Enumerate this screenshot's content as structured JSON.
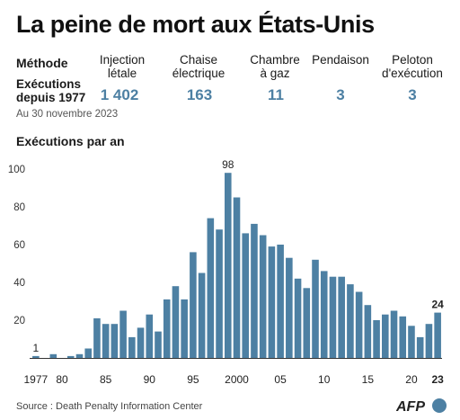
{
  "header": {
    "title": "La peine de mort aux États-Unis",
    "method_label": "Méthode",
    "executions_label": "Exécutions\ndepuis 1977",
    "as_of": "Au 30 novembre 2023"
  },
  "methods": [
    {
      "name": "Injection\nlétale",
      "value": "1 402"
    },
    {
      "name": "Chaise\nélectrique",
      "value": "163"
    },
    {
      "name": "Chambre\nà gaz",
      "value": "11"
    },
    {
      "name": "Pendaison",
      "value": "3"
    },
    {
      "name": "Peloton\nd'exécution",
      "value": "3"
    }
  ],
  "footer": {
    "source": "Source : Death Penalty Information Center",
    "logo_text": "AFP"
  },
  "colors": {
    "bar": "#4d80a3",
    "value_text": "#4d80a3",
    "axis": "#333333",
    "logo": "#4d80a3"
  },
  "chart_data": {
    "type": "bar",
    "title": "Exécutions par an",
    "xlabel": "",
    "ylabel": "",
    "x": [
      1977,
      1978,
      1979,
      1980,
      1981,
      1982,
      1983,
      1984,
      1985,
      1986,
      1987,
      1988,
      1989,
      1990,
      1991,
      1992,
      1993,
      1994,
      1995,
      1996,
      1997,
      1998,
      1999,
      2000,
      2001,
      2002,
      2003,
      2004,
      2005,
      2006,
      2007,
      2008,
      2009,
      2010,
      2011,
      2012,
      2013,
      2014,
      2015,
      2016,
      2017,
      2018,
      2019,
      2020,
      2021,
      2022,
      2023
    ],
    "values": [
      1,
      0,
      2,
      0,
      1,
      2,
      5,
      21,
      18,
      18,
      25,
      11,
      16,
      23,
      14,
      31,
      38,
      31,
      56,
      45,
      74,
      68,
      98,
      85,
      66,
      71,
      65,
      59,
      60,
      53,
      42,
      37,
      52,
      46,
      43,
      43,
      39,
      35,
      28,
      20,
      23,
      25,
      22,
      17,
      11,
      18,
      24
    ],
    "ylim": [
      0,
      100
    ],
    "yticks": [
      20,
      40,
      60,
      80,
      100
    ],
    "xtick_labels": [
      {
        "year": 1977,
        "label": "1977"
      },
      {
        "year": 1980,
        "label": "80"
      },
      {
        "year": 1985,
        "label": "85"
      },
      {
        "year": 1990,
        "label": "90"
      },
      {
        "year": 1995,
        "label": "95"
      },
      {
        "year": 2000,
        "label": "2000"
      },
      {
        "year": 2005,
        "label": "05"
      },
      {
        "year": 2010,
        "label": "10"
      },
      {
        "year": 2015,
        "label": "15"
      },
      {
        "year": 2020,
        "label": "20"
      },
      {
        "year": 2023,
        "label": "23"
      }
    ],
    "annotations": [
      {
        "year": 1977,
        "label": "1",
        "bold": false
      },
      {
        "year": 1999,
        "label": "98",
        "bold": false
      },
      {
        "year": 2023,
        "label": "24",
        "bold": true
      }
    ],
    "grid": false
  }
}
